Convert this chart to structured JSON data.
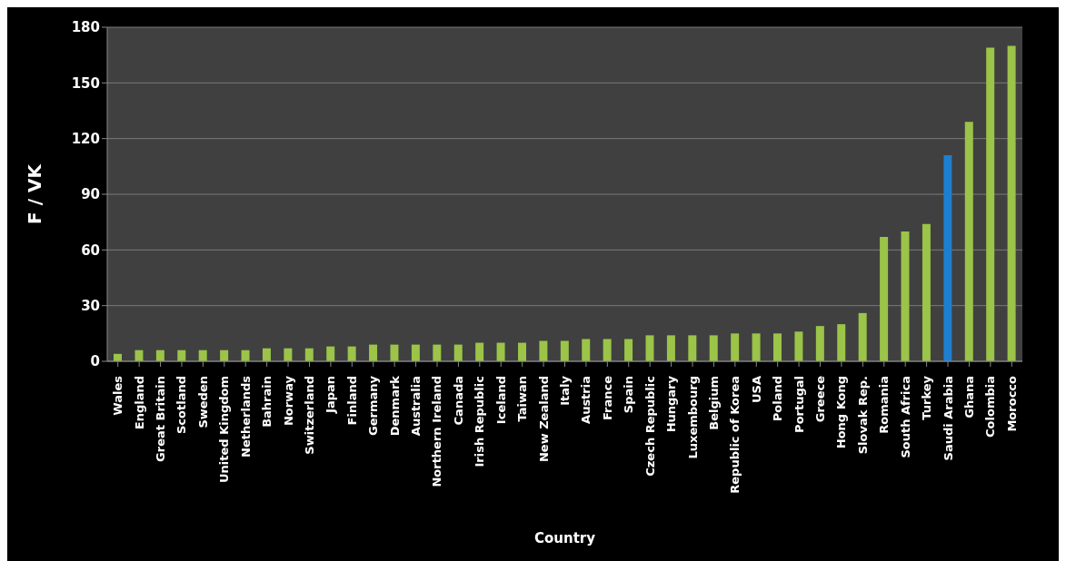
{
  "chart_data": {
    "type": "bar",
    "xlabel": "Country",
    "ylabel": "F / VK",
    "categories": [
      "Wales",
      "England",
      "Great Britain",
      "Scotland",
      "Sweden",
      "United Kingdom",
      "Netherlands",
      "Bahrain",
      "Norway",
      "Switzerland",
      "Japan",
      "Finland",
      "Germany",
      "Denmark",
      "Australia",
      "Northern Ireland",
      "Canada",
      "Irish Republic",
      "Iceland",
      "Taiwan",
      "New Zealand",
      "Italy",
      "Austria",
      "France",
      "Spain",
      "Czech Republic",
      "Hungary",
      "Luxembourg",
      "Belgium",
      "Republic of Korea",
      "USA",
      "Poland",
      "Portugal",
      "Greece",
      "Hong Kong",
      "Slovak Rep.",
      "Romania",
      "South Africa",
      "Turkey",
      "Saudi Arabia",
      "Ghana",
      "Colombia",
      "Morocco"
    ],
    "values": [
      4,
      6,
      6,
      6,
      6,
      6,
      6,
      7,
      7,
      7,
      8,
      8,
      9,
      9,
      9,
      9,
      9,
      10,
      10,
      10,
      11,
      11,
      12,
      12,
      12,
      14,
      14,
      14,
      14,
      15,
      15,
      15,
      16,
      19,
      20,
      26,
      67,
      70,
      74,
      111,
      129,
      169,
      170
    ],
    "colors": [
      "#9bc448",
      "#9bc448",
      "#9bc448",
      "#9bc448",
      "#9bc448",
      "#9bc448",
      "#9bc448",
      "#9bc448",
      "#9bc448",
      "#9bc448",
      "#9bc448",
      "#9bc448",
      "#9bc448",
      "#9bc448",
      "#9bc448",
      "#9bc448",
      "#9bc448",
      "#9bc448",
      "#9bc448",
      "#9bc448",
      "#9bc448",
      "#9bc448",
      "#9bc448",
      "#9bc448",
      "#9bc448",
      "#9bc448",
      "#9bc448",
      "#9bc448",
      "#9bc448",
      "#9bc448",
      "#9bc448",
      "#9bc448",
      "#9bc448",
      "#9bc448",
      "#9bc448",
      "#9bc448",
      "#9bc448",
      "#9bc448",
      "#9bc448",
      "#1e7fd0",
      "#9bc448",
      "#9bc448",
      "#9bc448"
    ],
    "ylim": [
      0,
      180
    ],
    "yticks": [
      0,
      30,
      60,
      90,
      120,
      150,
      180
    ],
    "grid": "y"
  }
}
